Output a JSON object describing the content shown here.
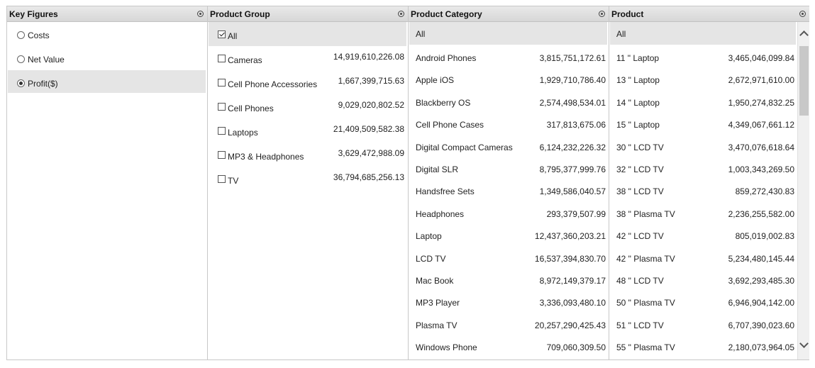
{
  "key_figures": {
    "title": "Key Figures",
    "items": [
      {
        "label": "Costs",
        "selected": false
      },
      {
        "label": "Net Value",
        "selected": false
      },
      {
        "label": "Profit($)",
        "selected": true
      }
    ]
  },
  "product_group": {
    "title": "Product Group",
    "all_label": "All",
    "items": [
      {
        "label": "Cameras",
        "value": "14,919,610,226.08"
      },
      {
        "label": "Cell Phone Accessories",
        "value": "1,667,399,715.63"
      },
      {
        "label": "Cell Phones",
        "value": "9,029,020,802.52"
      },
      {
        "label": "Laptops",
        "value": "21,409,509,582.38"
      },
      {
        "label": "MP3 & Headphones",
        "value": "3,629,472,988.09"
      },
      {
        "label": "TV",
        "value": "36,794,685,256.13"
      }
    ]
  },
  "product_category": {
    "title": "Product Category",
    "all_label": "All",
    "items": [
      {
        "label": "Android Phones",
        "value": "3,815,751,172.61"
      },
      {
        "label": "Apple iOS",
        "value": "1,929,710,786.40"
      },
      {
        "label": "Blackberry OS",
        "value": "2,574,498,534.01"
      },
      {
        "label": "Cell Phone Cases",
        "value": "317,813,675.06"
      },
      {
        "label": "Digital Compact Cameras",
        "value": "6,124,232,226.32"
      },
      {
        "label": "Digital SLR",
        "value": "8,795,377,999.76"
      },
      {
        "label": "Handsfree Sets",
        "value": "1,349,586,040.57"
      },
      {
        "label": "Headphones",
        "value": "293,379,507.99"
      },
      {
        "label": "Laptop",
        "value": "12,437,360,203.21"
      },
      {
        "label": "LCD TV",
        "value": "16,537,394,830.70"
      },
      {
        "label": "Mac Book",
        "value": "8,972,149,379.17"
      },
      {
        "label": "MP3 Player",
        "value": "3,336,093,480.10"
      },
      {
        "label": "Plasma TV",
        "value": "20,257,290,425.43"
      },
      {
        "label": "Windows Phone",
        "value": "709,060,309.50"
      }
    ]
  },
  "product": {
    "title": "Product",
    "all_label": "All",
    "items": [
      {
        "label": "11 \" Laptop",
        "value": "3,465,046,099.84"
      },
      {
        "label": "13 \" Laptop",
        "value": "2,672,971,610.00"
      },
      {
        "label": "14 \" Laptop",
        "value": "1,950,274,832.25"
      },
      {
        "label": "15 \" Laptop",
        "value": "4,349,067,661.12"
      },
      {
        "label": "30 \" LCD TV",
        "value": "3,470,076,618.64"
      },
      {
        "label": "32 \" LCD TV",
        "value": "1,003,343,269.50"
      },
      {
        "label": "38 \" LCD TV",
        "value": "859,272,430.83"
      },
      {
        "label": "38 \" Plasma TV",
        "value": "2,236,255,582.00"
      },
      {
        "label": "42 \" LCD TV",
        "value": "805,019,002.83"
      },
      {
        "label": "42 \" Plasma TV",
        "value": "5,234,480,145.44"
      },
      {
        "label": "48 \" LCD TV",
        "value": "3,692,293,485.30"
      },
      {
        "label": "50 \" Plasma TV",
        "value": "6,946,904,142.00"
      },
      {
        "label": "51 \" LCD TV",
        "value": "6,707,390,023.60"
      },
      {
        "label": "55 \" Plasma TV",
        "value": "2,180,073,964.05"
      }
    ]
  }
}
